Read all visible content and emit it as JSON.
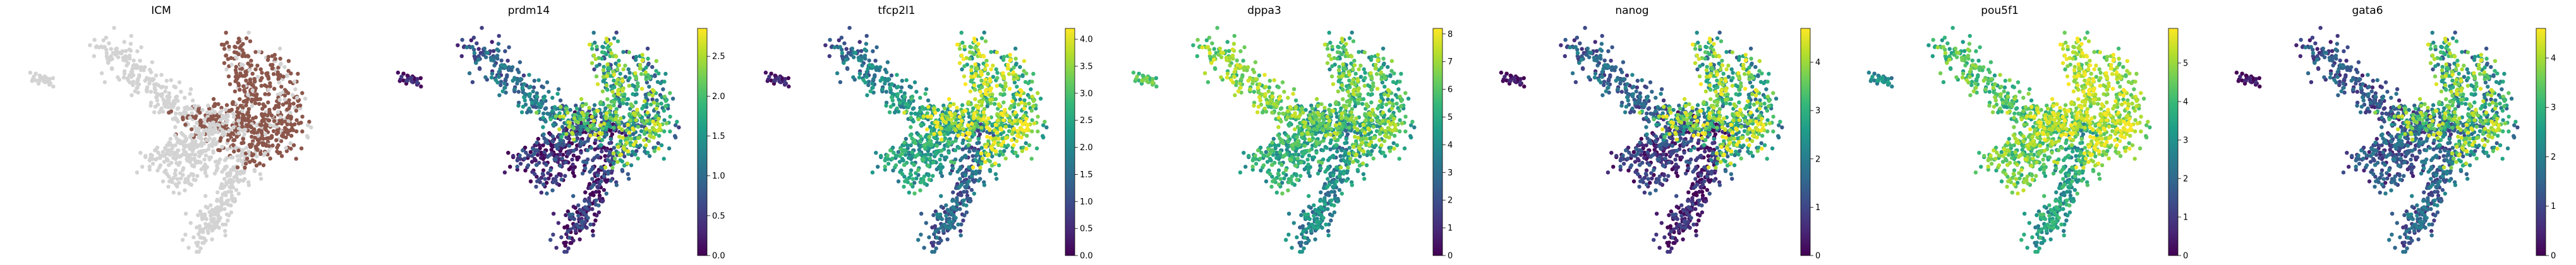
{
  "chart_data": [
    {
      "type": "scatter",
      "title": "ICM",
      "color_mode": "categorical",
      "category_color": "#8c564b",
      "background_color": "#d3d3d3",
      "colorbar": null
    },
    {
      "type": "scatter",
      "title": "prdm14",
      "color_mode": "continuous",
      "colormap": "viridis",
      "colorbar": {
        "min": 0.0,
        "max": 2.85,
        "ticks": [
          "0.0",
          "0.5",
          "1.0",
          "1.5",
          "2.0",
          "2.5"
        ],
        "tick_values": [
          0.0,
          0.5,
          1.0,
          1.5,
          2.0,
          2.5
        ]
      }
    },
    {
      "type": "scatter",
      "title": "tfcp2l1",
      "color_mode": "continuous",
      "colormap": "viridis",
      "colorbar": {
        "min": 0.0,
        "max": 4.2,
        "ticks": [
          "0.0",
          "0.5",
          "1.0",
          "1.5",
          "2.0",
          "2.5",
          "3.0",
          "3.5",
          "4.0"
        ],
        "tick_values": [
          0.0,
          0.5,
          1.0,
          1.5,
          2.0,
          2.5,
          3.0,
          3.5,
          4.0
        ]
      }
    },
    {
      "type": "scatter",
      "title": "dppa3",
      "color_mode": "continuous",
      "colormap": "viridis",
      "colorbar": {
        "min": 0,
        "max": 8.2,
        "ticks": [
          "0",
          "1",
          "2",
          "3",
          "4",
          "5",
          "6",
          "7",
          "8"
        ],
        "tick_values": [
          0,
          1,
          2,
          3,
          4,
          5,
          6,
          7,
          8
        ]
      }
    },
    {
      "type": "scatter",
      "title": "nanog",
      "color_mode": "continuous",
      "colormap": "viridis",
      "colorbar": {
        "min": 0,
        "max": 4.7,
        "ticks": [
          "0",
          "1",
          "2",
          "3",
          "4"
        ],
        "tick_values": [
          0,
          1,
          2,
          3,
          4
        ]
      }
    },
    {
      "type": "scatter",
      "title": "pou5f1",
      "color_mode": "continuous",
      "colormap": "viridis",
      "colorbar": {
        "min": 0,
        "max": 5.9,
        "ticks": [
          "0",
          "1",
          "2",
          "3",
          "4",
          "5"
        ],
        "tick_values": [
          0,
          1,
          2,
          3,
          4,
          5
        ]
      }
    },
    {
      "type": "scatter",
      "title": "gata6",
      "color_mode": "continuous",
      "colormap": "viridis",
      "colorbar": {
        "min": 0,
        "max": 4.6,
        "ticks": [
          "0",
          "1",
          "2",
          "3",
          "4"
        ],
        "tick_values": [
          0,
          1,
          2,
          3,
          4
        ]
      }
    }
  ]
}
